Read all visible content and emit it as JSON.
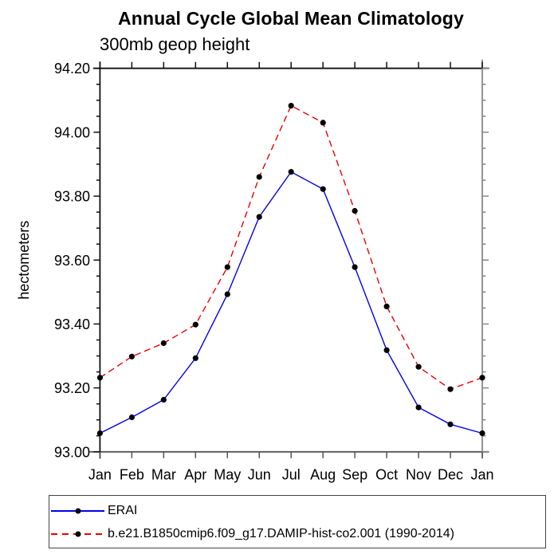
{
  "chart_data": {
    "type": "line",
    "title": "Annual Cycle Global Mean Climatology",
    "subtitle": "300mb geop height",
    "ylabel": "hectometers",
    "categories": [
      "Jan",
      "Feb",
      "Mar",
      "Apr",
      "May",
      "Jun",
      "Jul",
      "Aug",
      "Sep",
      "Oct",
      "Nov",
      "Dec",
      "Jan"
    ],
    "series": [
      {
        "name": "ERAI",
        "color": "#0000ee",
        "line_style": "solid",
        "marker": "filled-circle",
        "marker_color": "#000000",
        "values": [
          93.058,
          93.108,
          93.163,
          93.293,
          93.493,
          93.735,
          93.876,
          93.822,
          93.578,
          93.318,
          93.139,
          93.086,
          93.058
        ]
      },
      {
        "name": "b.e21.B1850cmip6.f09_g17.DAMIP-hist-co2.001 (1990-2014)",
        "color": "#ee0000",
        "line_style": "dashed",
        "marker": "filled-circle",
        "marker_color": "#000000",
        "values": [
          93.232,
          93.298,
          93.34,
          93.398,
          93.578,
          93.86,
          94.083,
          94.03,
          93.754,
          93.455,
          93.266,
          93.196,
          93.232
        ]
      }
    ],
    "ylim": [
      93.0,
      94.2
    ],
    "ytick_labels": [
      "93.00",
      "93.20",
      "93.40",
      "93.60",
      "93.80",
      "94.00",
      "94.20"
    ],
    "ytick_major_interval": 0.2,
    "ytick_minor_interval": 0.05,
    "xtick_minor": false,
    "grid": false,
    "legend_position": "bottom-left",
    "axis_color_topleft": "#111111",
    "axis_color_bottom": "#555555",
    "axis_color_right": "#888888",
    "text_color": "#000000"
  }
}
